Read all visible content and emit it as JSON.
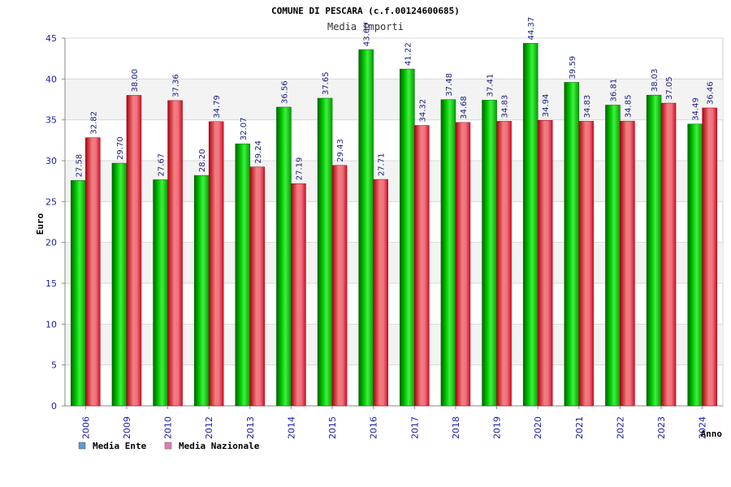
{
  "chart_data": {
    "type": "bar",
    "title": "COMUNE DI PESCARA (c.f.00124600685)",
    "subtitle": "Media Importi",
    "xlabel": "Anno",
    "ylabel": "Euro",
    "ylim": [
      0,
      45
    ],
    "yticks": [
      0,
      5,
      10,
      15,
      20,
      25,
      30,
      35,
      40,
      45
    ],
    "grid": true,
    "legend_position": "bottom-left",
    "categories": [
      "2006",
      "2009",
      "2010",
      "2012",
      "2013",
      "2014",
      "2015",
      "2016",
      "2017",
      "2018",
      "2019",
      "2020",
      "2021",
      "2022",
      "2023",
      "2024"
    ],
    "series": [
      {
        "name": "Media Ente",
        "color": "#00b000",
        "legend_color": "#5b9bd5",
        "values": [
          27.58,
          29.7,
          27.67,
          28.2,
          32.07,
          36.56,
          37.65,
          43.6,
          41.22,
          37.48,
          37.41,
          44.37,
          39.59,
          36.81,
          38.03,
          34.49
        ],
        "labels": [
          "27.58",
          "29.70",
          "27.67",
          "28.20",
          "32.07",
          "36.56",
          "37.65",
          "43.60",
          "41.22",
          "37.48",
          "37.41",
          "44.37",
          "39.59",
          "36.81",
          "38.03",
          "34.49"
        ]
      },
      {
        "name": "Media Nazionale",
        "color": "#e0202a",
        "legend_color": "#d980b0",
        "values": [
          32.82,
          38.0,
          37.36,
          34.79,
          29.24,
          27.19,
          29.43,
          27.71,
          34.32,
          34.68,
          34.83,
          34.94,
          34.83,
          34.85,
          37.05,
          36.46
        ],
        "labels": [
          "32.82",
          "38.00",
          "37.36",
          "34.79",
          "29.24",
          "27.19",
          "29.43",
          "27.71",
          "34.32",
          "34.68",
          "34.83",
          "34.94",
          "34.83",
          "34.85",
          "37.05",
          "36.46"
        ]
      }
    ]
  }
}
